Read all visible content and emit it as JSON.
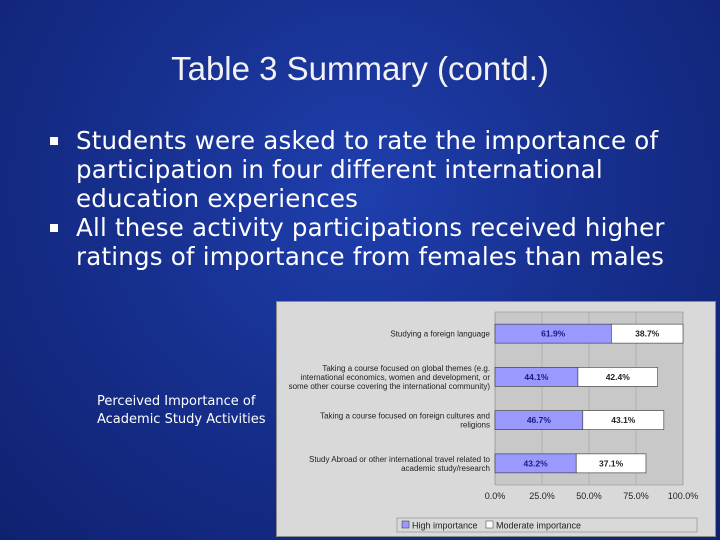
{
  "slide": {
    "title": "Table 3 Summary (contd.)",
    "bullets": [
      "Students were asked to rate the importance of participation in four different international education experiences",
      "All these activity participations received higher ratings of importance from females than males"
    ],
    "chart_caption": "Perceived Importance of Academic Study Activities"
  },
  "chart_data": {
    "type": "bar",
    "orientation": "horizontal",
    "stacked": true,
    "categories": [
      [
        "Studying a foreign language"
      ],
      [
        "Taking a course focused on global themes (e.g.",
        "international economics, women and development, or",
        "some other course covering the international community)"
      ],
      [
        "Taking a course focused on foreign cultures and",
        "religions"
      ],
      [
        "Study Abroad or other international travel related to",
        "academic study/research"
      ]
    ],
    "series": [
      {
        "name": "High importance",
        "color": "#9999ff",
        "values": [
          61.9,
          44.1,
          46.7,
          43.2
        ],
        "labels": [
          "61.9%",
          "44.1%",
          "46.7%",
          "43.2%"
        ]
      },
      {
        "name": "Moderate importance",
        "color": "#ffffff",
        "values": [
          38.7,
          42.4,
          43.1,
          37.1
        ],
        "labels": [
          "38.7%",
          "42.4%",
          "43.1%",
          "37.1%"
        ]
      }
    ],
    "xlim": [
      0,
      100
    ],
    "xticks": [
      "0.0%",
      "25.0%",
      "50.0%",
      "75.0%",
      "100.0%"
    ],
    "legend_position": "bottom"
  }
}
